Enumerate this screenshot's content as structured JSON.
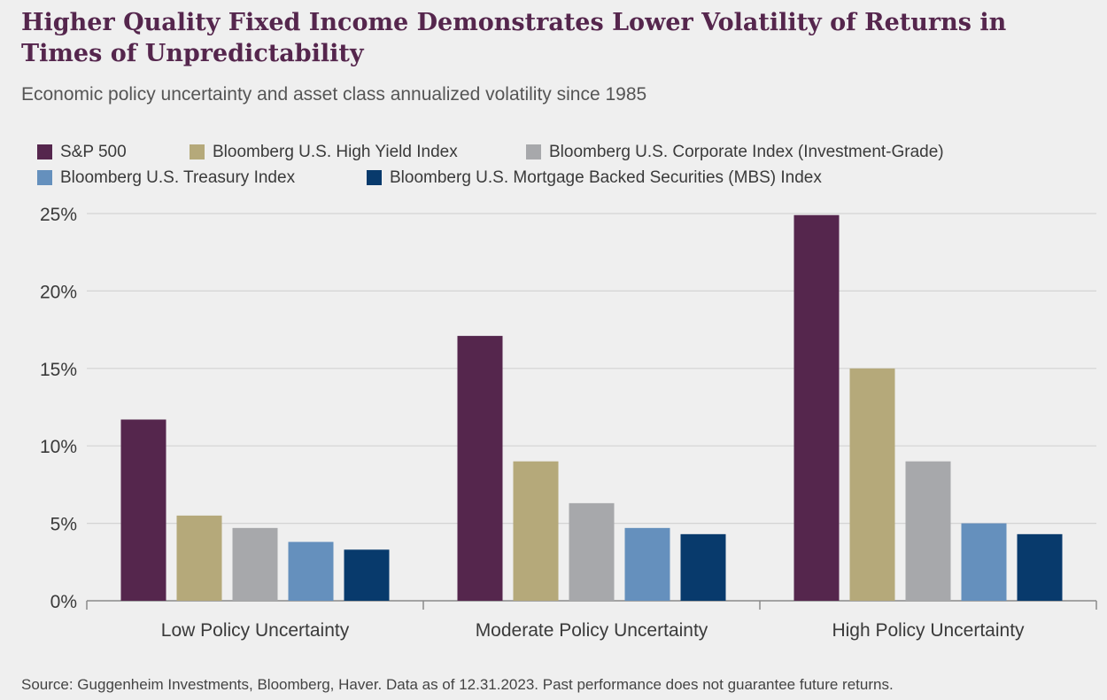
{
  "title": "Higher Quality Fixed Income Demonstrates Lower Volatility of Returns in Times of Unpredictability",
  "subtitle": "Economic policy uncertainty and asset class annualized volatility since 1985",
  "source": "Source: Guggenheim Investments, Bloomberg, Haver. Data as of 12.31.2023. Past performance does not guarantee future returns.",
  "chart_data": {
    "type": "bar",
    "categories": [
      "Low Policy Uncertainty",
      "Moderate Policy Uncertainty",
      "High Policy Uncertainty"
    ],
    "series": [
      {
        "name": "S&P 500",
        "color": "#55264d",
        "values": [
          11.7,
          17.1,
          24.9
        ]
      },
      {
        "name": "Bloomberg U.S. High Yield Index",
        "color": "#b5a97a",
        "values": [
          5.5,
          9.0,
          15.0
        ]
      },
      {
        "name": "Bloomberg U.S. Corporate Index (Investment-Grade)",
        "color": "#a7a8ab",
        "values": [
          4.7,
          6.3,
          9.0
        ]
      },
      {
        "name": "Bloomberg U.S. Treasury Index",
        "color": "#6590bd",
        "values": [
          3.8,
          4.7,
          5.0
        ]
      },
      {
        "name": "Bloomberg U.S. Mortgage Backed Securities (MBS) Index",
        "color": "#083a6c",
        "values": [
          3.3,
          4.3,
          4.3
        ]
      }
    ],
    "ylim": [
      0,
      25
    ],
    "yticks": [
      "0%",
      "5%",
      "10%",
      "15%",
      "20%",
      "25%"
    ],
    "ytick_values": [
      0,
      5,
      10,
      15,
      20,
      25
    ],
    "grid": true,
    "legend_placement": "top"
  }
}
